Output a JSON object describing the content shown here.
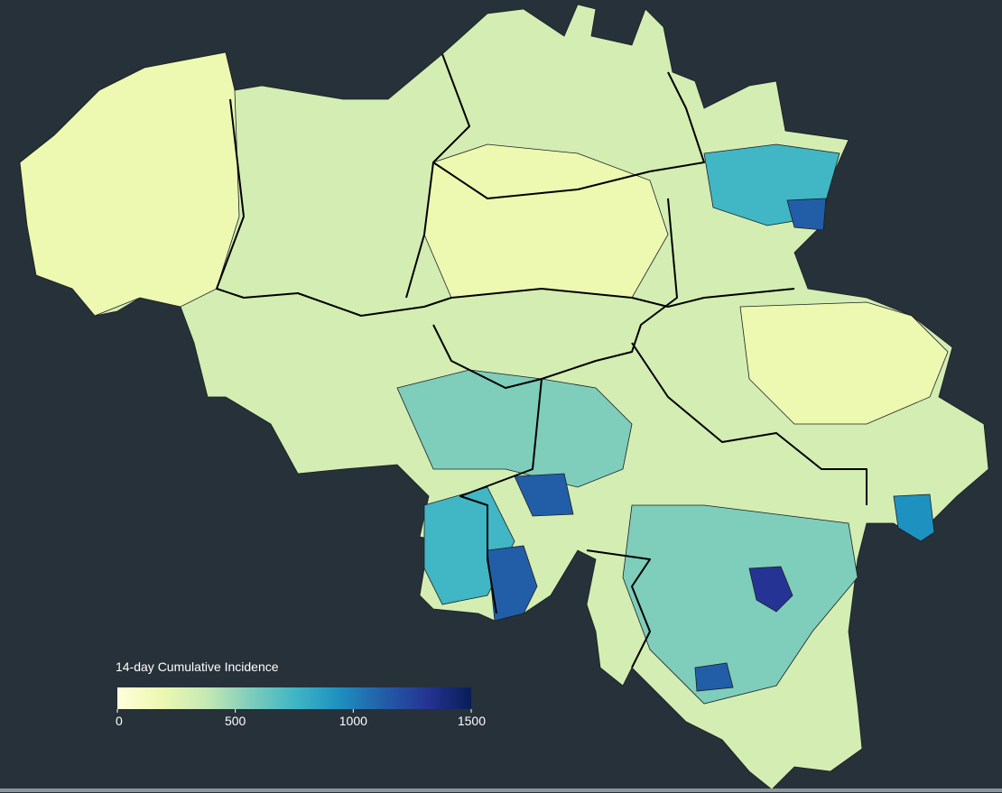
{
  "legend": {
    "title": "14-day Cumulative Incidence",
    "range": [
      0,
      1500
    ],
    "ticks": [
      0,
      500,
      1000,
      1500
    ],
    "colors": [
      "#ffffd9",
      "#edf8b1",
      "#c7e9b4",
      "#7fcdbb",
      "#41b6c4",
      "#1d91c0",
      "#225ea8",
      "#253494",
      "#081d58"
    ]
  }
}
